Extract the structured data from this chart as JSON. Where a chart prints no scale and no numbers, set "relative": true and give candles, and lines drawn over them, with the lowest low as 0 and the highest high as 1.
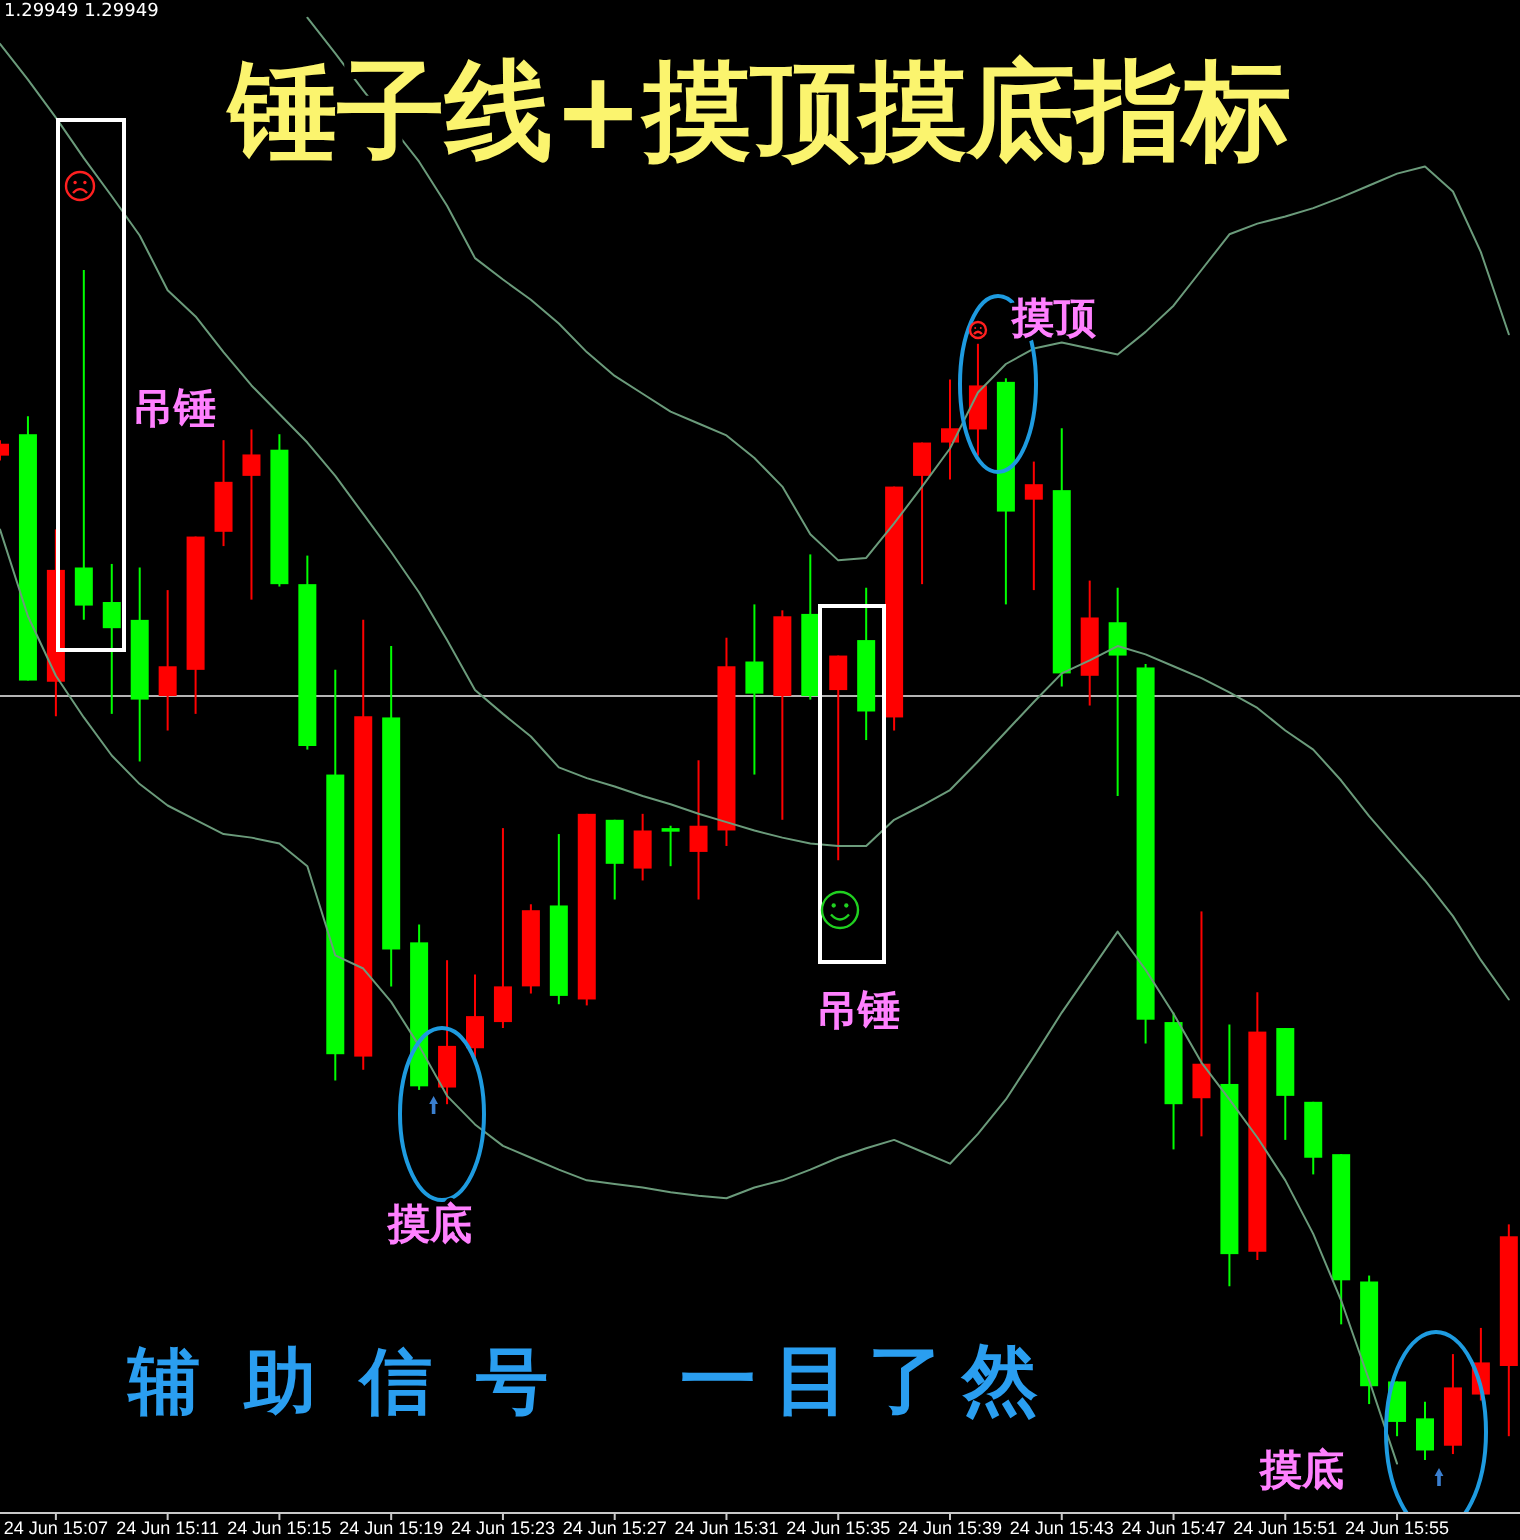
{
  "chart_data": {
    "type": "candlestick",
    "title": "锤子线+摸顶摸底指标",
    "relative": true,
    "categories": [
      null,
      null,
      "24 Jun 15:07",
      null,
      null,
      null,
      "24 Jun 15:11",
      null,
      null,
      null,
      "24 Jun 15:15",
      null,
      null,
      null,
      "24 Jun 15:19",
      null,
      null,
      null,
      "24 Jun 15:23",
      null,
      null,
      null,
      "24 Jun 15:27",
      null,
      null,
      null,
      "24 Jun 15:31",
      null,
      null,
      null,
      "24 Jun 15:35",
      null,
      null,
      null,
      "24 Jun 15:39",
      null,
      null,
      null,
      "24 Jun 15:43",
      null,
      null,
      null,
      "24 Jun 15:47",
      null,
      null,
      null,
      "24 Jun 15:51",
      null,
      null,
      null,
      "24 Jun 15:55",
      null,
      null,
      null,
      null
    ],
    "ohlc": [
      [
        0.844,
        0.857,
        0.84,
        0.854
      ],
      [
        0.862,
        0.877,
        0.655,
        0.655
      ],
      [
        0.654,
        0.782,
        0.625,
        0.748
      ],
      [
        0.75,
        1,
        0.706,
        0.718
      ],
      [
        0.721,
        0.753,
        0.627,
        0.699
      ],
      [
        0.706,
        0.75,
        0.587,
        0.639
      ],
      [
        0.642,
        0.731,
        0.613,
        0.667
      ],
      [
        0.664,
        0.776,
        0.627,
        0.776
      ],
      [
        0.78,
        0.857,
        0.768,
        0.822
      ],
      [
        0.827,
        0.866,
        0.723,
        0.845
      ],
      [
        0.849,
        0.862,
        0.734,
        0.736
      ],
      [
        0.736,
        0.76,
        0.597,
        0.6
      ],
      [
        0.576,
        0.664,
        0.319,
        0.341
      ],
      [
        0.339,
        0.706,
        0.328,
        0.625
      ],
      [
        0.624,
        0.684,
        0.398,
        0.429
      ],
      [
        0.435,
        0.45,
        0.311,
        0.314
      ],
      [
        0.313,
        0.42,
        0.299,
        0.348
      ],
      [
        0.346,
        0.408,
        0.336,
        0.373
      ],
      [
        0.368,
        0.531,
        0.363,
        0.398
      ],
      [
        0.398,
        0.467,
        0.392,
        0.462
      ],
      [
        0.466,
        0.526,
        0.383,
        0.39
      ],
      [
        0.387,
        0.543,
        0.382,
        0.543
      ],
      [
        0.538,
        0.538,
        0.471,
        0.501
      ],
      [
        0.497,
        0.543,
        0.487,
        0.529
      ],
      [
        0.531,
        0.533,
        0.499,
        0.528
      ],
      [
        0.511,
        0.588,
        0.471,
        0.533
      ],
      [
        0.529,
        0.691,
        0.516,
        0.667
      ],
      [
        0.671,
        0.719,
        0.576,
        0.644
      ],
      [
        0.642,
        0.714,
        0.538,
        0.709
      ],
      [
        0.711,
        0.761,
        0.639,
        0.642
      ],
      [
        0.647,
        0.676,
        0.504,
        0.676
      ],
      [
        0.689,
        0.733,
        0.605,
        0.629
      ],
      [
        0.624,
        0.818,
        0.613,
        0.818
      ],
      [
        0.827,
        0.855,
        0.736,
        0.855
      ],
      [
        0.855,
        0.908,
        0.824,
        0.867
      ],
      [
        0.866,
        0.938,
        0.844,
        0.903
      ],
      [
        0.906,
        0.909,
        0.719,
        0.797
      ],
      [
        0.807,
        0.839,
        0.731,
        0.82
      ],
      [
        0.815,
        0.867,
        0.65,
        0.661
      ],
      [
        0.659,
        0.739,
        0.634,
        0.708
      ],
      [
        0.704,
        0.733,
        0.558,
        0.676
      ],
      [
        0.666,
        0.669,
        0.35,
        0.37
      ],
      [
        0.368,
        0.376,
        0.261,
        0.299
      ],
      [
        0.304,
        0.461,
        0.272,
        0.333
      ],
      [
        0.316,
        0.366,
        0.146,
        0.173
      ],
      [
        0.175,
        0.393,
        0.168,
        0.36
      ],
      [
        0.363,
        0.363,
        0.269,
        0.306
      ],
      [
        0.301,
        0.301,
        0.24,
        0.254
      ],
      [
        0.257,
        0.257,
        0.114,
        0.151
      ],
      [
        0.15,
        0.155,
        0.047,
        0.062
      ],
      [
        0.066,
        0.066,
        0.02,
        0.032
      ],
      [
        0.035,
        0.049,
        0,
        0.008
      ],
      [
        0.012,
        0.089,
        0.005,
        0.061
      ],
      [
        0.055,
        0.111,
        0.05,
        0.082
      ],
      [
        0.079,
        0.198,
        0.02,
        0.188
      ]
    ],
    "colors": [
      "#ff0000",
      "#00ff00",
      "#ff0000",
      "#00ff00",
      "#00ff00",
      "#00ff00",
      "#ff0000",
      "#ff0000",
      "#ff0000",
      "#ff0000",
      "#00ff00",
      "#00ff00",
      "#00ff00",
      "#ff0000",
      "#00ff00",
      "#00ff00",
      "#ff0000",
      "#ff0000",
      "#ff0000",
      "#ff0000",
      "#00ff00",
      "#ff0000",
      "#00ff00",
      "#ff0000",
      "#00ff00",
      "#ff0000",
      "#ff0000",
      "#00ff00",
      "#ff0000",
      "#00ff00",
      "#ff0000",
      "#00ff00",
      "#ff0000",
      "#ff0000",
      "#ff0000",
      "#ff0000",
      "#00ff00",
      "#ff0000",
      "#00ff00",
      "#ff0000",
      "#00ff00",
      "#00ff00",
      "#00ff00",
      "#ff0000",
      "#00ff00",
      "#ff0000",
      "#00ff00",
      "#00ff00",
      "#00ff00",
      "#00ff00",
      "#00ff00",
      "#00ff00",
      "#ff0000",
      "#ff0000",
      "#ff0000"
    ],
    "series": [
      {
        "type": "line",
        "color": "#6b9b7b",
        "values": [
          null,
          null,
          null,
          null,
          null,
          null,
          null,
          null,
          null,
          null,
          null,
          1.212,
          1.182,
          1.151,
          1.121,
          1.091,
          1.054,
          1.01,
          0.992,
          0.975,
          0.955,
          0.931,
          0.911,
          0.896,
          0.881,
          0.871,
          0.861,
          0.842,
          0.818,
          0.778,
          0.756,
          0.758,
          0.787,
          0.818,
          0.85,
          0.897,
          0.921,
          0.934,
          0.939,
          0.934,
          0.929,
          0.948,
          0.97,
          1.0,
          1.03,
          1.039,
          1.045,
          1.052,
          1.061,
          1.071,
          1.081,
          1.087,
          1.066,
          1.015,
          0.946
        ]
      },
      {
        "type": "line",
        "color": "#6b9b7b",
        "values": [
          1.19,
          1.16,
          1.128,
          1.094,
          1.062,
          1.029,
          0.983,
          0.961,
          0.931,
          0.903,
          0.879,
          0.855,
          0.827,
          0.795,
          0.763,
          0.729,
          0.689,
          0.647,
          0.627,
          0.608,
          0.582,
          0.573,
          0.566,
          0.558,
          0.551,
          0.543,
          0.536,
          0.529,
          0.523,
          0.518,
          0.516,
          0.516,
          0.538,
          0.55,
          0.563,
          0.587,
          0.612,
          0.637,
          0.661,
          0.672,
          0.684,
          0.677,
          0.667,
          0.657,
          0.645,
          0.632,
          0.613,
          0.597,
          0.571,
          0.541,
          0.514,
          0.487,
          0.457,
          0.42,
          0.387
        ]
      },
      {
        "type": "line",
        "color": "#6b9b7b",
        "values": [
          0.782,
          0.709,
          0.659,
          0.624,
          0.592,
          0.568,
          0.55,
          0.538,
          0.526,
          0.523,
          0.518,
          0.499,
          0.424,
          0.413,
          0.385,
          0.348,
          0.306,
          0.282,
          0.264,
          0.254,
          0.244,
          0.235,
          0.232,
          0.229,
          0.225,
          0.222,
          0.22,
          0.229,
          0.235,
          0.244,
          0.254,
          0.262,
          0.269,
          0.259,
          0.249,
          0.274,
          0.303,
          0.339,
          0.376,
          0.41,
          0.444,
          0.412,
          0.375,
          0.334,
          0.303,
          0.271,
          0.235,
          0.19,
          0.134,
          0.067,
          -0.003,
          null,
          null,
          null,
          null
        ]
      }
    ],
    "ref_lines": [
      {
        "axis": "y",
        "value": 0.642,
        "color": "#b4b4b4"
      }
    ],
    "annotations": [
      "1.29949 1.29949",
      "吊锤",
      "摸顶",
      "摸底",
      "吊锤",
      "摸底",
      "辅助信号",
      "一目了然"
    ]
  }
}
